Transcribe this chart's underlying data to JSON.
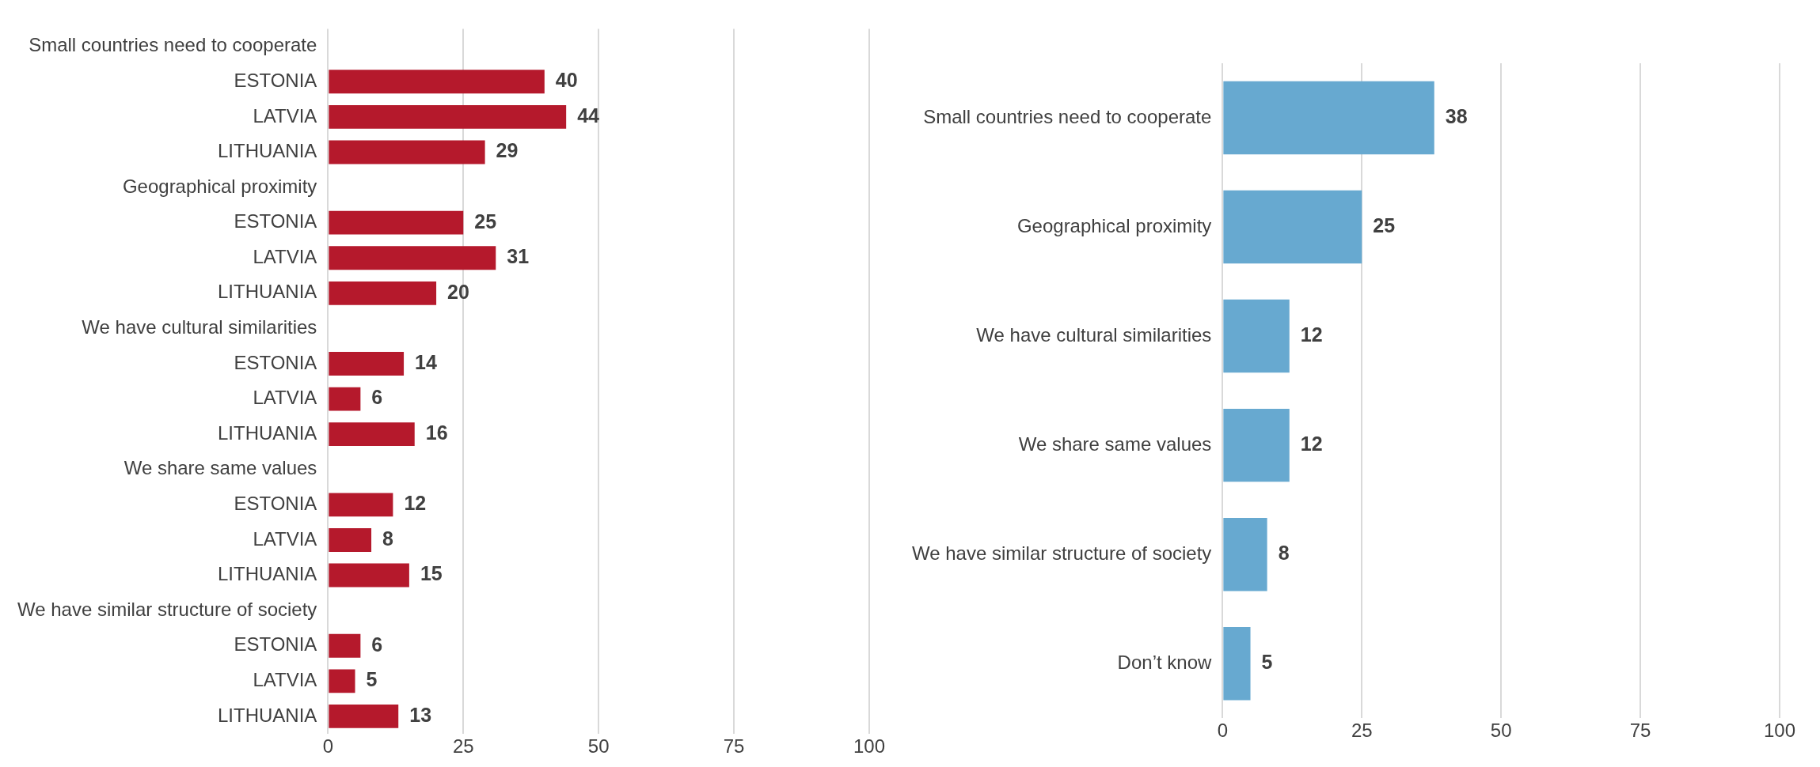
{
  "chart_data": [
    {
      "type": "bar",
      "orientation": "horizontal",
      "categories": [
        "Small countries need to cooperate",
        "ESTONIA",
        "LATVIA",
        "LITHUANIA",
        "Geographical proximity",
        "ESTONIA",
        "LATVIA",
        "LITHUANIA",
        "We have cultural similarities",
        "ESTONIA",
        "LATVIA",
        "LITHUANIA",
        "We share same values",
        "ESTONIA",
        "LATVIA",
        "LITHUANIA",
        "We have similar structure of society",
        "ESTONIA",
        "LATVIA",
        "LITHUANIA"
      ],
      "values": [
        null,
        40,
        44,
        29,
        null,
        25,
        31,
        20,
        null,
        14,
        6,
        16,
        null,
        12,
        8,
        15,
        null,
        6,
        5,
        13
      ],
      "color": "#b5192c",
      "xlim": [
        0,
        100
      ],
      "xticks": [
        0,
        25,
        50,
        75,
        100
      ],
      "grid": "x",
      "data_labels": true
    },
    {
      "type": "bar",
      "orientation": "horizontal",
      "categories": [
        "Small countries need to cooperate",
        "Geographical proximity",
        "We have cultural similarities",
        "We share same values",
        "We have similar structure of society",
        "Don’t know"
      ],
      "values": [
        38,
        25,
        12,
        12,
        8,
        5
      ],
      "color": "#67a9d0",
      "xlim": [
        0,
        100
      ],
      "xticks": [
        0,
        25,
        50,
        75,
        100
      ],
      "grid": "x",
      "data_labels": true
    }
  ]
}
